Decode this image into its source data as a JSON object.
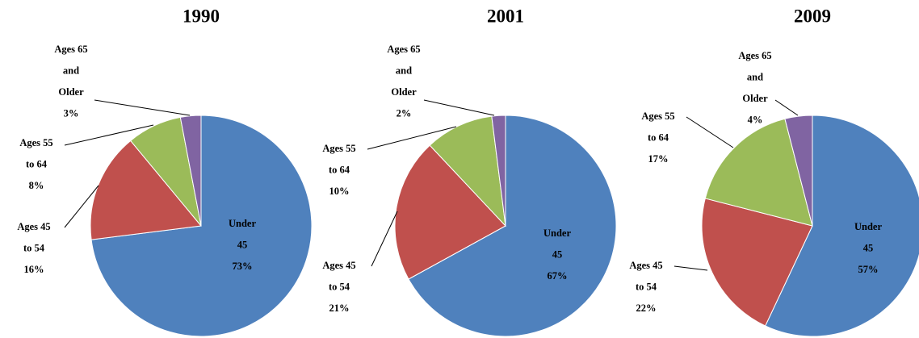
{
  "chart_data": [
    {
      "type": "pie",
      "title": "1990",
      "categories": [
        "Under 45",
        "Ages 45 to 54",
        "Ages 55 to 64",
        "Ages 65 and Older"
      ],
      "values": [
        73,
        16,
        8,
        3
      ],
      "value_labels": [
        "73%",
        "16%",
        "8%",
        "3%"
      ],
      "colors": [
        "#4f81bd",
        "#c0504d",
        "#9bbb59",
        "#8064a2"
      ]
    },
    {
      "type": "pie",
      "title": "2001",
      "categories": [
        "Under 45",
        "Ages 45 to 54",
        "Ages 55 to 64",
        "Ages 65 and Older"
      ],
      "values": [
        67,
        21,
        10,
        2
      ],
      "value_labels": [
        "67%",
        "21%",
        "10%",
        "2%"
      ],
      "colors": [
        "#4f81bd",
        "#c0504d",
        "#9bbb59",
        "#8064a2"
      ]
    },
    {
      "type": "pie",
      "title": "2009",
      "categories": [
        "Under 45",
        "Ages 45 to 54",
        "Ages 55 to 64",
        "Ages 65 and Older"
      ],
      "values": [
        57,
        22,
        17,
        4
      ],
      "value_labels": [
        "57%",
        "22%",
        "17%",
        "4%"
      ],
      "colors": [
        "#4f81bd",
        "#c0504d",
        "#9bbb59",
        "#8064a2"
      ]
    }
  ]
}
